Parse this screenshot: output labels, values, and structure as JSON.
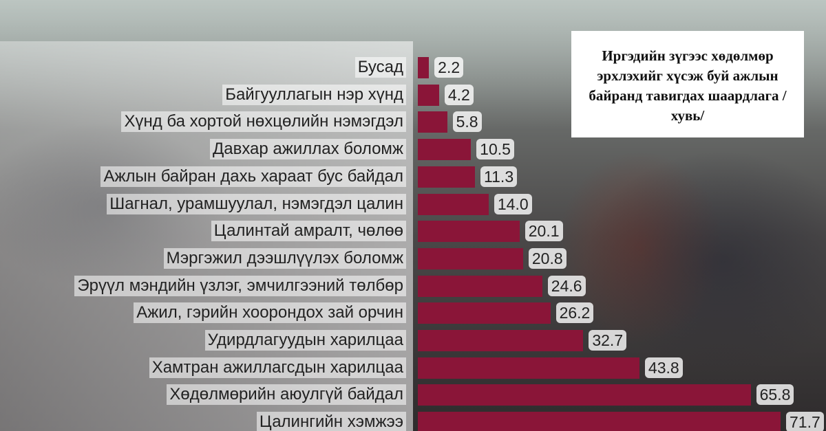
{
  "chart_data": {
    "type": "bar",
    "orientation": "horizontal",
    "title": "Иргэдийн зүгээс хөдөлмөр эрхлэхийг хүсэж буй ажлын байранд тавигдах шаардлага /хувь/",
    "categories": [
      "Бусад",
      "Байгууллагын нэр хүнд",
      "Хүнд ба хортой нөхцөлийн нэмэгдэл",
      "Давхар ажиллах боломж",
      "Ажлын байран дахь хараат бус байдал",
      "Шагнал, урамшуулал, нэмэгдэл цалин",
      "Цалинтай амралт, чөлөө",
      "Мэргэжил дээшлүүлэх боломж",
      "Эрүүл мэндийн үзлэг, эмчилгээний төлбөр",
      "Ажил, гэрийн хоорондох зай орчин",
      "Удирдлагуудын харилцаа",
      "Хамтран ажиллагсдын харилцаа",
      "Хөдөлмөрийн аюулгүй байдал",
      "Цалингийн хэмжээ"
    ],
    "values": [
      2.2,
      4.2,
      5.8,
      10.5,
      11.3,
      14.0,
      20.1,
      20.8,
      24.6,
      26.2,
      32.7,
      43.8,
      65.8,
      71.7
    ],
    "value_labels": [
      "2.2",
      "4.2",
      "5.8",
      "10.5",
      "11.3",
      "14.0",
      "20.1",
      "20.8",
      "24.6",
      "26.2",
      "32.7",
      "43.8",
      "65.8",
      "71.7"
    ],
    "color": "#8a1538"
  }
}
